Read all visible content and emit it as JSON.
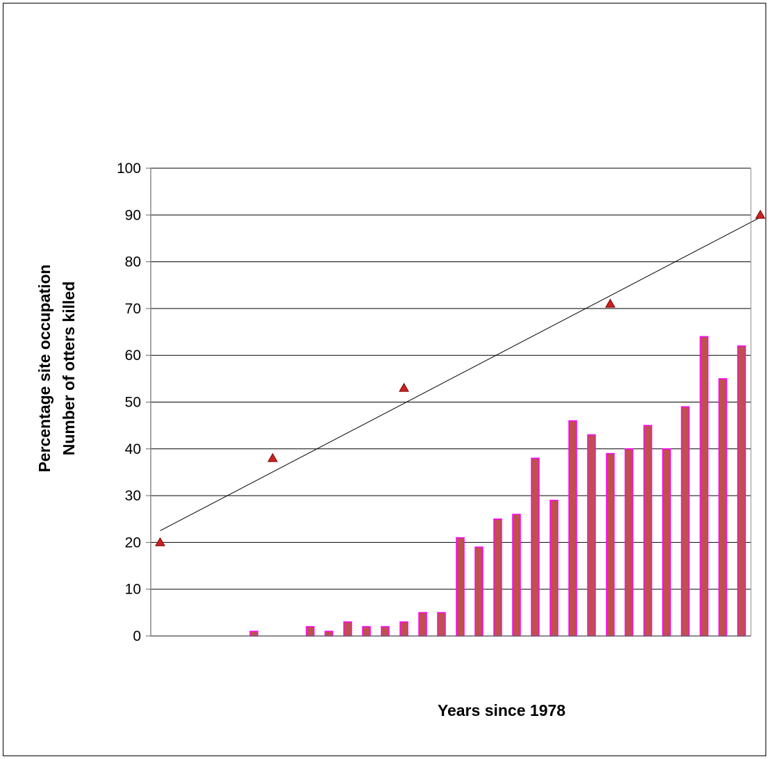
{
  "chart_data": {
    "type": "bar",
    "xlabel": "Years since 1978",
    "ylabel_lines": [
      "Percentage site occupation",
      "Number of otters killed"
    ],
    "ylim": [
      0,
      100
    ],
    "yticks": [
      0,
      10,
      20,
      30,
      40,
      50,
      60,
      70,
      80,
      90,
      100
    ],
    "grid": true,
    "bar_series": {
      "x": [
        1,
        2,
        3,
        4,
        5,
        6,
        7,
        8,
        9,
        10,
        11,
        12,
        13,
        14,
        15,
        16,
        17,
        18,
        19,
        20,
        21,
        22,
        23,
        24,
        25,
        26,
        27,
        28,
        29,
        30,
        31,
        32
      ],
      "values": [
        0,
        0,
        0,
        0,
        0,
        1,
        0,
        0,
        2,
        1,
        3,
        2,
        2,
        3,
        5,
        5,
        21,
        19,
        25,
        26,
        38,
        29,
        46,
        43,
        39,
        40,
        45,
        40,
        49,
        64,
        55,
        62
      ]
    },
    "scatter_series": {
      "x": [
        1,
        7,
        14,
        25,
        33
      ],
      "values": [
        20,
        38,
        53,
        71,
        90
      ]
    },
    "trendline": {
      "x": [
        1,
        33
      ],
      "values": [
        22.5,
        89.5
      ]
    },
    "colors": {
      "bar_fill": "#c0504d",
      "bar_stroke": "#ff00ff",
      "marker_fill": "#cc2222",
      "marker_stroke": "#7a0000",
      "gridline": "#000000",
      "trendline": "#000000"
    }
  }
}
